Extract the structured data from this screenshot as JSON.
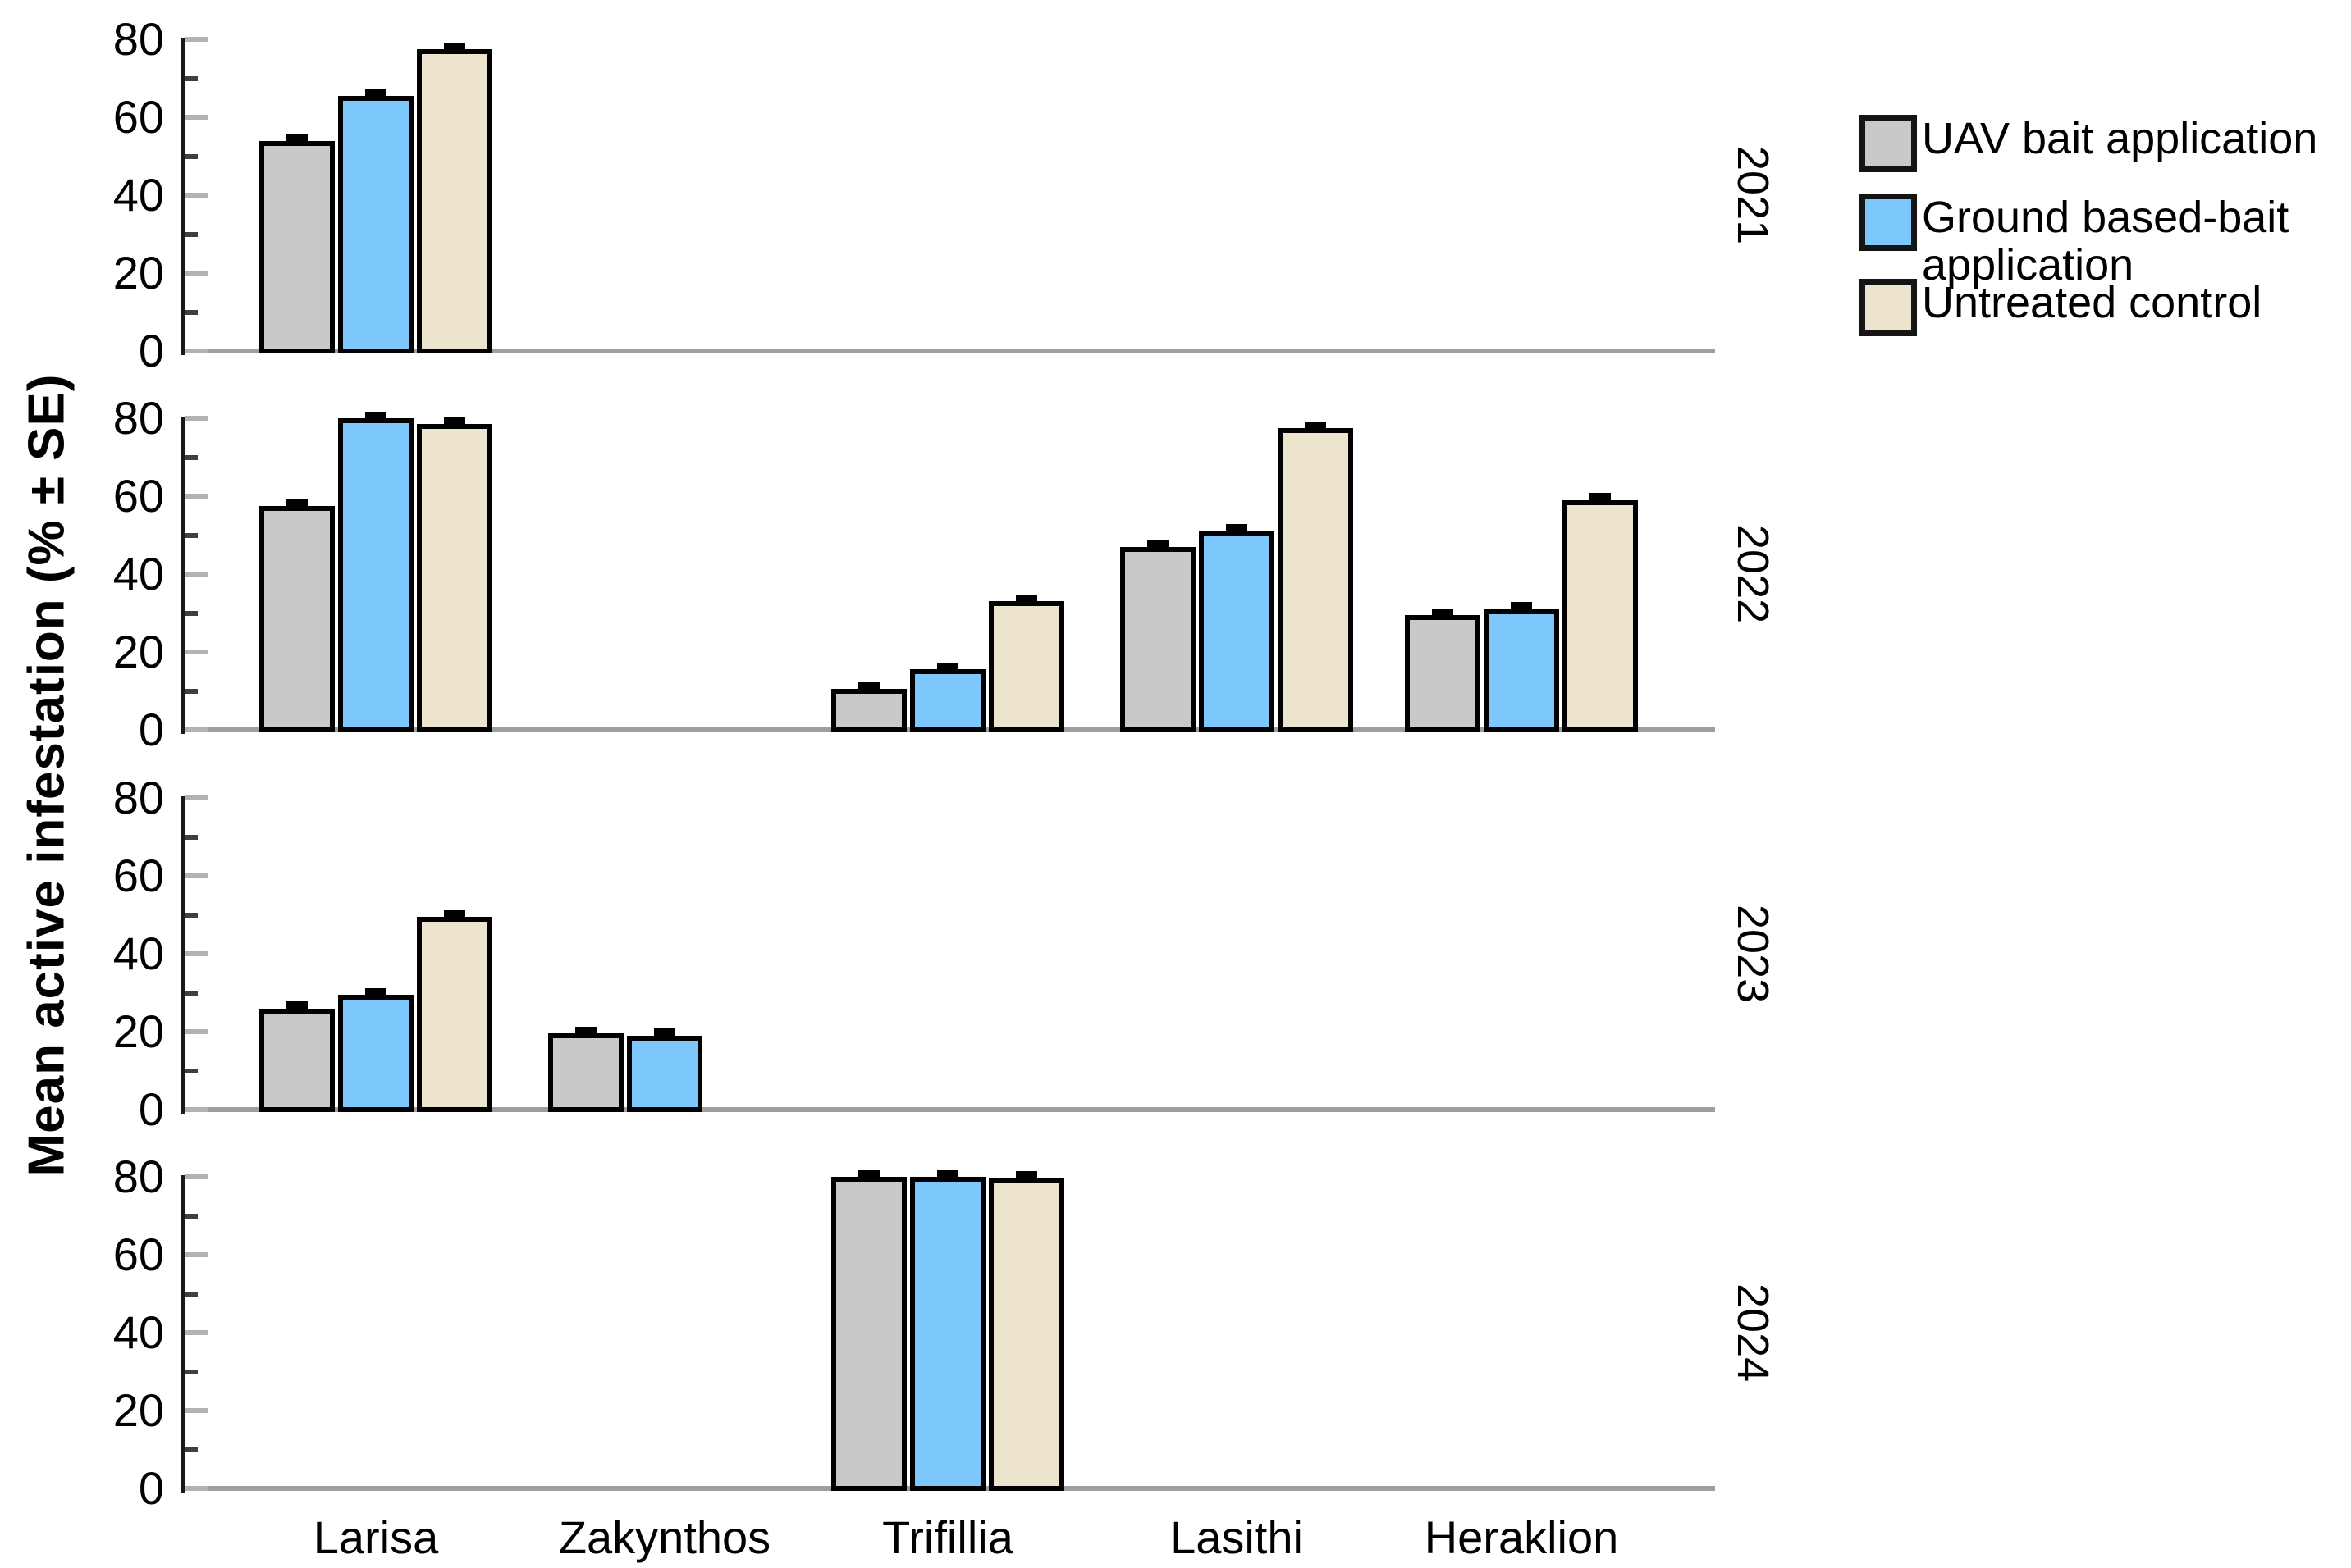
{
  "figure": {
    "background": "#ffffff"
  },
  "chart_data": {
    "type": "bar",
    "title": "",
    "ylabel": "Mean active infestation (% ± SE)",
    "xlabel": "",
    "ylim": [
      0,
      80
    ],
    "yticks": [
      0,
      20,
      40,
      60,
      80
    ],
    "minor_yticks": [
      10,
      30,
      50,
      70
    ],
    "grid": false,
    "legend_position": "top-right",
    "categories": [
      "Larisa",
      "Zakynthos",
      "Trifillia",
      "Lasithi",
      "Heraklion"
    ],
    "series_names": [
      "UAV bait application",
      "Ground based-bait application",
      "Untreated control"
    ],
    "series_colors": [
      "#c9c9c9",
      "#7cc8fc",
      "#ece4cd"
    ],
    "bar_outline_color": "#000000",
    "se_approx": 0.8,
    "panels": [
      {
        "year": "2021",
        "values": [
          [
            54,
            null,
            null,
            null,
            null
          ],
          [
            65.5,
            null,
            null,
            null,
            null
          ],
          [
            77.5,
            null,
            null,
            null,
            null
          ]
        ]
      },
      {
        "year": "2022",
        "values": [
          [
            57.5,
            null,
            10.5,
            47,
            29.5
          ],
          [
            80,
            null,
            15.5,
            51,
            31
          ],
          [
            78.5,
            null,
            33,
            77.5,
            59
          ]
        ]
      },
      {
        "year": "2023",
        "values": [
          [
            26,
            19.5,
            null,
            null,
            null
          ],
          [
            29.5,
            19,
            null,
            null,
            null
          ],
          [
            49.5,
            null,
            null,
            null,
            null
          ]
        ]
      },
      {
        "year": "2024",
        "values": [
          [
            null,
            null,
            80,
            null,
            null
          ],
          [
            null,
            null,
            80,
            null,
            null
          ],
          [
            null,
            null,
            79.8,
            null,
            null
          ]
        ]
      }
    ]
  },
  "legend": {
    "items": [
      {
        "label": "UAV bait application",
        "lines": [
          "UAV bait application"
        ],
        "color": "#c9c9c9"
      },
      {
        "label": "Ground based-bait application",
        "lines": [
          "Ground based-bait",
          "application"
        ],
        "color": "#7cc8fc"
      },
      {
        "label": "Untreated control",
        "lines": [
          "Untreated control"
        ],
        "color": "#ece4cd"
      }
    ]
  }
}
